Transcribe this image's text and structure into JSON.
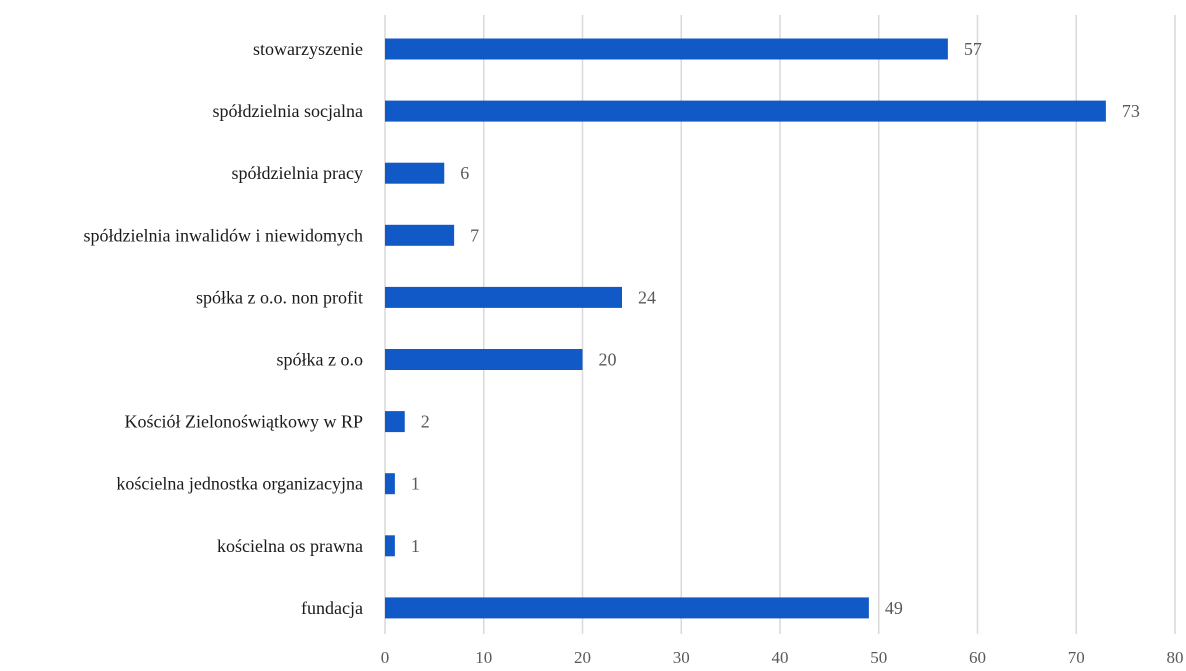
{
  "chart_data": {
    "type": "bar",
    "orientation": "horizontal",
    "categories": [
      "stowarzyszenie",
      "spółdzielnia socjalna",
      "spółdzielnia pracy",
      "spółdzielnia inwalidów i niewidomych",
      "spółka z o.o. non profit",
      "spółka z o.o",
      "Kościół Zielonoświątkowy w RP",
      "kościelna jednostka organizacyjna",
      "kościelna os prawna",
      "fundacja"
    ],
    "values": [
      57,
      73,
      6,
      7,
      24,
      20,
      2,
      1,
      1,
      49
    ],
    "xlim": [
      0,
      80
    ],
    "xticks": [
      0,
      10,
      20,
      30,
      40,
      50,
      60,
      70,
      80
    ],
    "grid": "vertical",
    "data_labels": true,
    "title": "",
    "xlabel": "",
    "ylabel": "",
    "colors": {
      "bar": "#1159c7",
      "grid": "#d9d9d9",
      "label": "#595959"
    }
  }
}
